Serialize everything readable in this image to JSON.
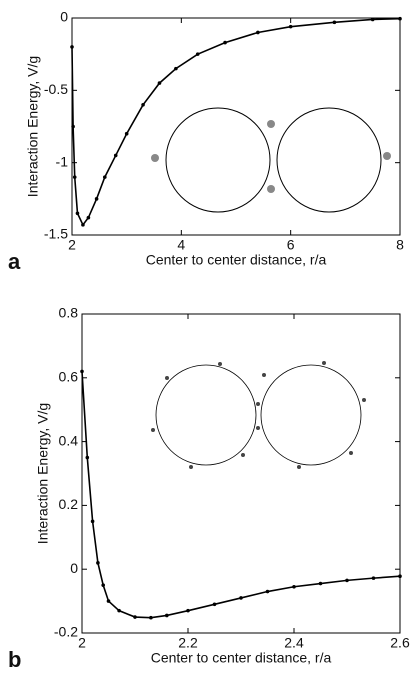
{
  "chart_data": [
    {
      "type": "line",
      "panel_label": "a",
      "x_label": "Center to center distance, r/a",
      "y_label": "Interaction Energy, V/g",
      "xlim": [
        2,
        8
      ],
      "ylim": [
        -1.5,
        0
      ],
      "xticks": [
        2,
        4,
        6,
        8
      ],
      "yticks": [
        -1.5,
        -1,
        -0.5,
        0
      ],
      "series": [
        {
          "color": "#000000",
          "x": [
            2.0,
            2.02,
            2.05,
            2.1,
            2.2,
            2.3,
            2.45,
            2.6,
            2.8,
            3.0,
            3.3,
            3.6,
            3.9,
            4.3,
            4.8,
            5.4,
            6.0,
            6.8,
            7.5,
            8.0
          ],
          "values": [
            -0.2,
            -0.75,
            -1.1,
            -1.35,
            -1.43,
            -1.38,
            -1.25,
            -1.1,
            -0.95,
            -0.8,
            -0.6,
            -0.45,
            -0.35,
            -0.25,
            -0.17,
            -0.1,
            -0.06,
            -0.03,
            -0.01,
            -0.005
          ]
        }
      ]
    },
    {
      "type": "line",
      "panel_label": "b",
      "x_label": "Center to center distance, r/a",
      "y_label": "Interaction Energy, V/g",
      "xlim": [
        2,
        2.6
      ],
      "ylim": [
        -0.2,
        0.8
      ],
      "xticks": [
        2,
        2.2,
        2.4,
        2.6
      ],
      "yticks": [
        -0.2,
        0,
        0.2,
        0.4,
        0.6,
        0.8
      ],
      "series": [
        {
          "color": "#000000",
          "x": [
            2.0,
            2.01,
            2.02,
            2.03,
            2.04,
            2.05,
            2.07,
            2.1,
            2.13,
            2.16,
            2.2,
            2.25,
            2.3,
            2.35,
            2.4,
            2.45,
            2.5,
            2.55,
            2.6
          ],
          "values": [
            0.62,
            0.35,
            0.15,
            0.02,
            -0.05,
            -0.1,
            -0.13,
            -0.15,
            -0.152,
            -0.145,
            -0.13,
            -0.11,
            -0.09,
            -0.07,
            -0.055,
            -0.045,
            -0.035,
            -0.028,
            -0.022
          ]
        }
      ]
    }
  ]
}
